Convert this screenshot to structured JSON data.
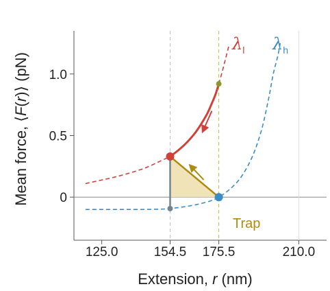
{
  "chart_data": {
    "type": "line",
    "xlabel": {
      "prefix": "Extension, ",
      "var": "r",
      "suffix": " (nm)"
    },
    "ylabel": {
      "prefix": "Mean force, ⟨",
      "var": "F",
      "mid": "(",
      "var2": "r",
      "suffix": ")⟩ (pN)"
    },
    "xlim": [
      113,
      222
    ],
    "ylim": [
      -0.35,
      1.35
    ],
    "x_ticks": [
      {
        "label": "125.0",
        "value": 125.0,
        "color": "#222222"
      },
      {
        "label": "154.5",
        "value": 154.5,
        "color": "#6f8594"
      },
      {
        "label": "175.5",
        "value": 175.5,
        "color": "#8a9a2a"
      },
      {
        "label": "210.0",
        "value": 210.0,
        "color": "#bbbbbb"
      }
    ],
    "y_ticks": [
      {
        "label": "0",
        "value": 0
      },
      {
        "label": "0.5",
        "value": 0.5
      },
      {
        "label": "1.0",
        "value": 1.0
      }
    ],
    "series": [
      {
        "name": "λ",
        "subscript": "l",
        "color": "#d0413a",
        "x": [
          118,
          124,
          130,
          136,
          142,
          146,
          150,
          154.5,
          158,
          162,
          166,
          170,
          172,
          174,
          175.5,
          177,
          178.5,
          180
        ],
        "y": [
          0.11,
          0.135,
          0.16,
          0.19,
          0.225,
          0.255,
          0.29,
          0.33,
          0.38,
          0.45,
          0.54,
          0.66,
          0.74,
          0.83,
          0.92,
          1.02,
          1.13,
          1.24
        ]
      },
      {
        "name": "λ",
        "subscript": "h",
        "color": "#3a8cc6",
        "x": [
          118,
          130,
          142,
          150,
          154.5,
          160,
          166,
          172,
          175.5,
          180,
          185,
          190,
          194,
          197,
          199,
          201,
          202
        ],
        "y": [
          -0.1,
          -0.1,
          -0.1,
          -0.098,
          -0.093,
          -0.08,
          -0.06,
          -0.03,
          0.0,
          0.06,
          0.16,
          0.33,
          0.55,
          0.8,
          1.0,
          1.15,
          1.25
        ]
      }
    ],
    "points": [
      {
        "x": 154.5,
        "y": 0.33,
        "color": "#d0413a"
      },
      {
        "x": 175.5,
        "y": 0.0,
        "color": "#3a8cc6"
      },
      {
        "x": 154.5,
        "y": -0.093,
        "color": "#6f8594"
      },
      {
        "x": 175.5,
        "y": 0.92,
        "color": "#8a9a2a"
      }
    ],
    "annotations": {
      "trap": "Trap"
    },
    "colors": {
      "trap": "#b08a10",
      "fill": "#f0e3b8",
      "grey": "#6f8594",
      "olive": "#b7c437",
      "vline_grey": "#c0c0c0",
      "axis": "#555555",
      "zero_line": "#888888"
    }
  }
}
